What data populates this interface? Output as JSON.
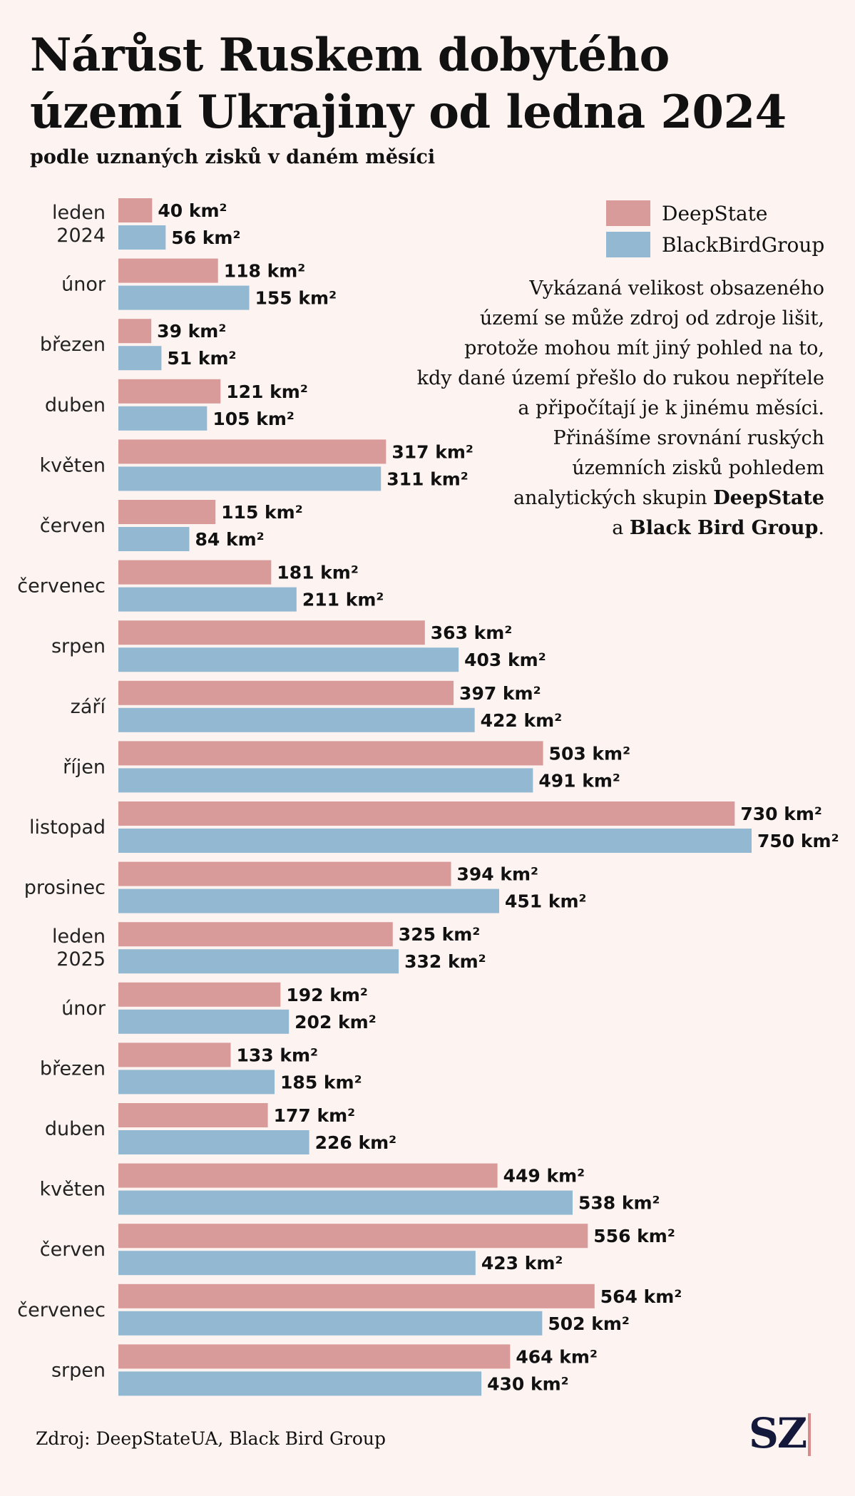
{
  "header": {
    "title": "Nárůst Ruskem dobytého území Ukrajiny od ledna 2024",
    "subtitle": "podle uznaných zisků v daném měsíci"
  },
  "legend": {
    "items": [
      {
        "label": "DeepState",
        "color": "#d99a9a"
      },
      {
        "label": "BlackBirdGroup",
        "color": "#92b8d2"
      }
    ]
  },
  "note": {
    "lines": [
      "Vykázaná velikost obsazeného",
      "území se může zdroj od zdroje lišit,",
      "protože mohou mít jiný pohled na to,",
      "kdy dané území přešlo do rukou nepřítele",
      "a připočítají je k jinému měsíci.",
      "Přinášíme srovnání ruských",
      "územních zisků pohledem"
    ],
    "line8_prefix": "analytických skupin ",
    "line8_bold": "DeepState",
    "line9_prefix": "a ",
    "line9_bold": "Black Bird Group",
    "line9_suffix": "."
  },
  "chart_data": {
    "type": "bar",
    "orientation": "horizontal",
    "unit": "km²",
    "categories": [
      "leden\n2024",
      "únor",
      "březen",
      "duben",
      "květen",
      "červen",
      "červenec",
      "srpen",
      "září",
      "říjen",
      "listopad",
      "prosinec",
      "leden\n2025",
      "únor",
      "březen",
      "duben",
      "květen",
      "červen",
      "červenec",
      "srpen"
    ],
    "series": [
      {
        "name": "DeepState",
        "color": "#d99a9a",
        "values": [
          40,
          118,
          39,
          121,
          317,
          115,
          181,
          363,
          397,
          503,
          730,
          394,
          325,
          192,
          133,
          177,
          449,
          556,
          564,
          464
        ]
      },
      {
        "name": "BlackBirdGroup",
        "color": "#92b8d2",
        "values": [
          56,
          155,
          51,
          105,
          311,
          84,
          211,
          403,
          422,
          491,
          750,
          451,
          332,
          202,
          185,
          226,
          538,
          423,
          502,
          430
        ]
      }
    ],
    "xlim": [
      0,
      750
    ],
    "grid": false
  },
  "footer": {
    "source": "Zdroj: DeepStateUA, Black Bird Group",
    "logo": "SZ"
  }
}
